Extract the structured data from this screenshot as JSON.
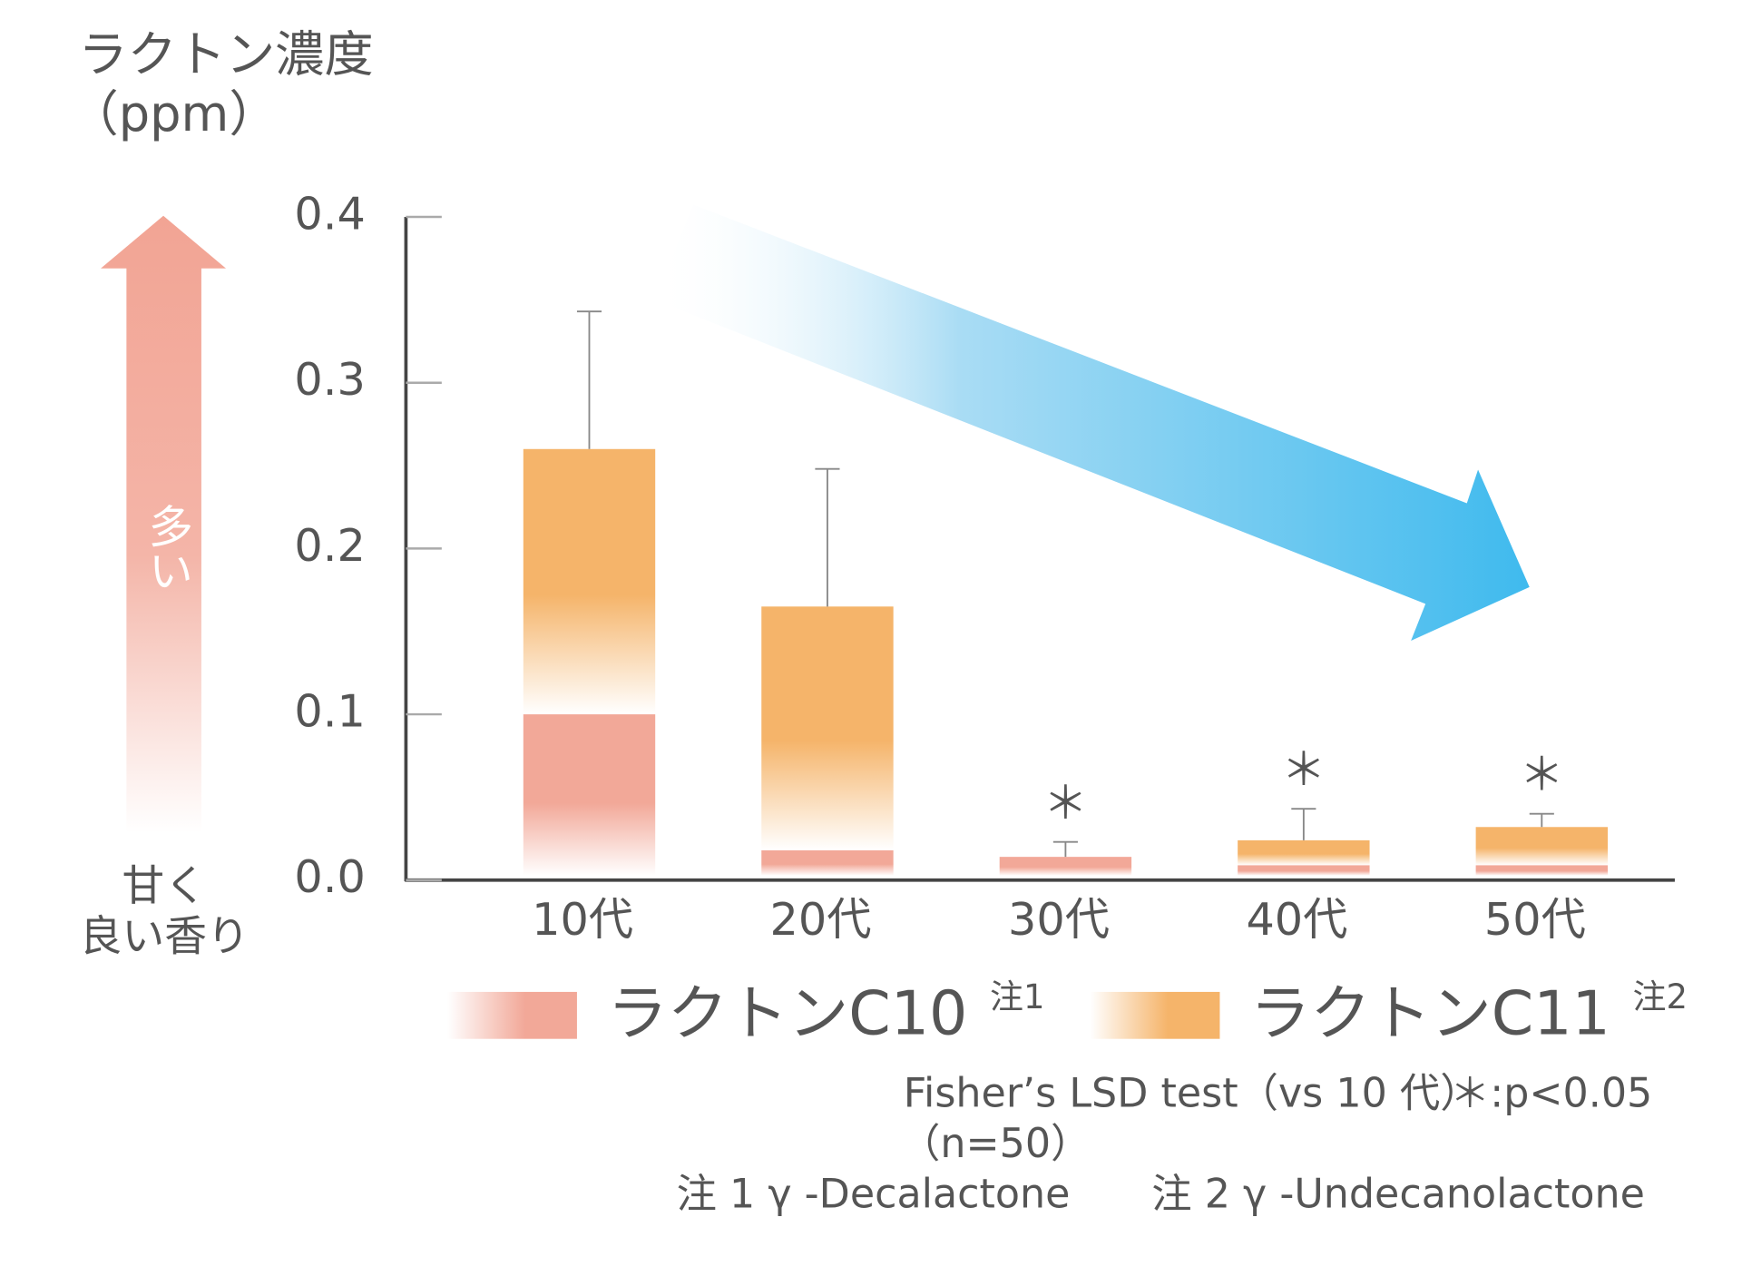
{
  "chart_data": {
    "type": "stacked_bar",
    "y_label": "ラクトン濃度",
    "y_unit": "（ppm）",
    "arrow_label": "多い",
    "bottom_label_1": "甘く",
    "bottom_label_2": "良い香り",
    "categories": [
      "10代",
      "20代",
      "30代",
      "40代",
      "50代"
    ],
    "series": [
      {
        "name": "ラクトンC10",
        "note": "注1",
        "color": "#f2a898",
        "values": [
          0.1,
          0.018,
          0.014,
          0.009,
          0.009
        ]
      },
      {
        "name": "ラクトンC11",
        "note": "注2",
        "color": "#f5b46a",
        "values": [
          0.16,
          0.147,
          0,
          0.015,
          0.023
        ]
      }
    ],
    "errors": [
      0.083,
      0.083,
      0.009,
      0.019,
      0.008
    ],
    "significance": [
      null,
      null,
      "＊",
      "＊",
      "＊"
    ],
    "ylim": [
      0,
      0.4
    ],
    "yticks": [
      {
        "value": 0,
        "label": "0.0"
      },
      0.1,
      0.2,
      0.3,
      0.4
    ],
    "footnotes": [
      "Fisher’s LSD test（vs 10 代）",
      "＊:p<0.05",
      "（n=50）",
      "注 1 γ -Decalactone",
      "注 2 γ -Undecanolactone"
    ]
  }
}
